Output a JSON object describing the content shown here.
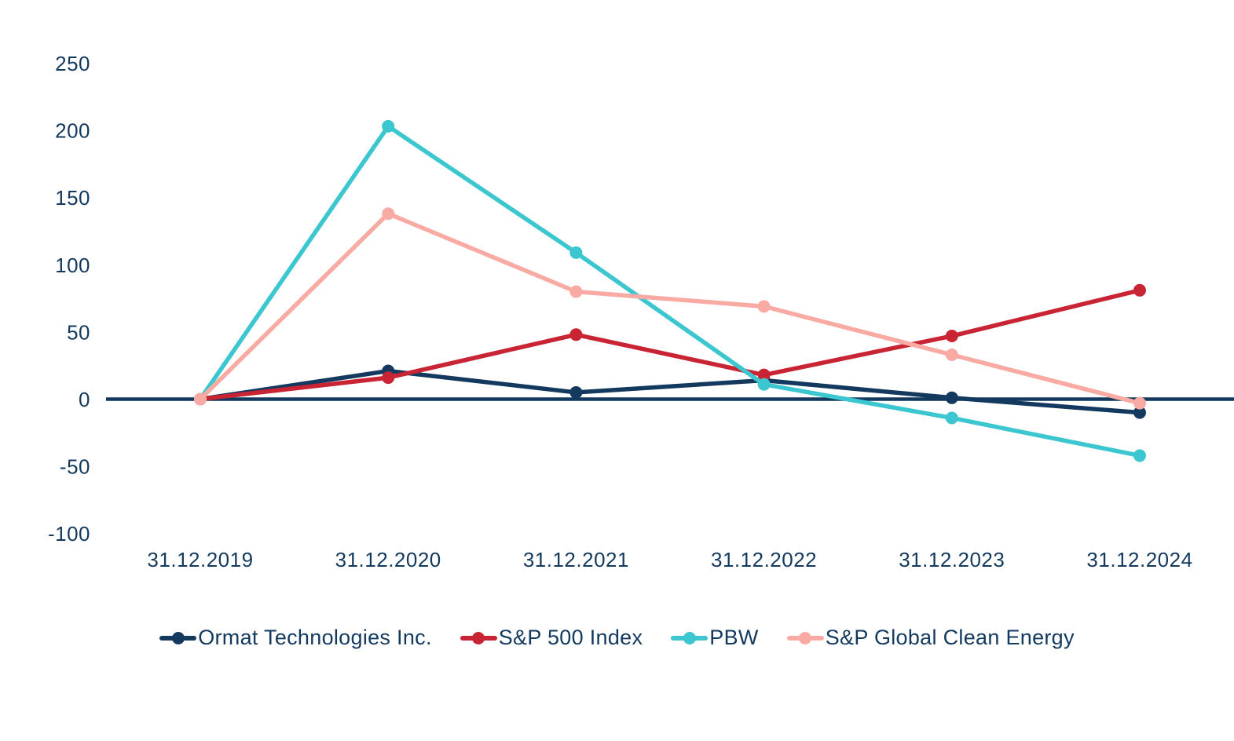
{
  "page": {
    "background": "#ffffff",
    "axis_color": "#133a5e",
    "label_color": "#133a5e"
  },
  "chart_data": {
    "type": "line",
    "title": "",
    "xlabel": "",
    "ylabel": "",
    "grid": false,
    "legend_position": "bottom",
    "categories": [
      "31.12.2019",
      "31.12.2020",
      "31.12.2021",
      "31.12.2022",
      "31.12.2023",
      "31.12.2024"
    ],
    "y_ticks": [
      250,
      200,
      150,
      100,
      50,
      0,
      -50,
      -100
    ],
    "ylim": [
      -115,
      265
    ],
    "series": [
      {
        "name": "Ormat Technologies Inc.",
        "color": "#133a5e",
        "values": [
          0,
          21,
          5,
          14,
          1,
          -10
        ]
      },
      {
        "name": "S&P 500 Index",
        "color": "#c92433",
        "values": [
          0,
          16,
          48,
          18,
          47,
          81
        ]
      },
      {
        "name": "PBW",
        "color": "#3bc6d0",
        "values": [
          0,
          203,
          109,
          11,
          -14,
          -42
        ]
      },
      {
        "name": "S&P Global Clean Energy",
        "color": "#f9aaa2",
        "values": [
          0,
          138,
          80,
          69,
          33,
          -3
        ]
      }
    ]
  }
}
